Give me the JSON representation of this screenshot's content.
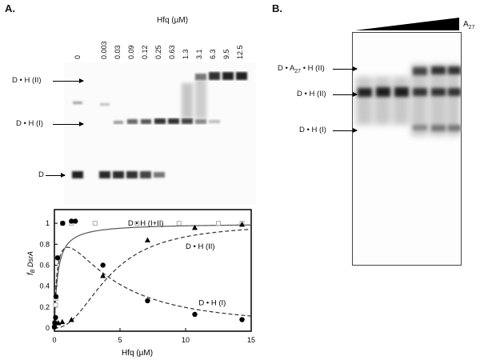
{
  "panel_a": {
    "label": "A.",
    "axis_title": "Hfq (µM)",
    "concentrations": [
      "0",
      "0.003",
      "0.03",
      "0.09",
      "0.12",
      "0.25",
      "0.63",
      "1.3",
      "3.1",
      "6.3",
      "9.5",
      "12.5"
    ],
    "bands": {
      "dh2": "D • H (II)",
      "dh1": "D • H (I)",
      "d": "D"
    }
  },
  "panel_b": {
    "label": "B.",
    "wedge_label": "A",
    "wedge_sub": "27",
    "bands": {
      "dah2_pre": "D • A",
      "dah2_sub": "27",
      "dah2_post": " • H (II)",
      "dh2": "D • H (II)",
      "dh1": "D • H (I)"
    }
  },
  "chart_data": {
    "type": "scatter",
    "xlabel": "Hfq (µM)",
    "ylabel_main": "f",
    "ylabel_sub": "B",
    "ylabel_rest": " DsrA",
    "xlim": [
      0,
      15
    ],
    "ylim": [
      0,
      1.1
    ],
    "xticks": [
      0,
      5,
      10,
      15
    ],
    "yticks": [
      0,
      0.2,
      0.4,
      0.6,
      0.8,
      1
    ],
    "ytick_labels": [
      "0",
      "0.2",
      "0.4",
      "0.6",
      "0.8",
      "1"
    ],
    "series": [
      {
        "name": "D • H (I+II)",
        "marker": "square",
        "line": "solid",
        "fit": "binding",
        "points": [
          [
            0.003,
            0.01
          ],
          [
            0.03,
            0.05
          ],
          [
            0.09,
            0.22
          ],
          [
            0.12,
            0.28
          ],
          [
            0.25,
            0.67
          ],
          [
            0.63,
            1.0
          ],
          [
            1.3,
            1.0
          ],
          [
            3.1,
            1.0
          ],
          [
            6.3,
            1.0
          ],
          [
            9.5,
            1.0
          ],
          [
            12.5,
            1.0
          ],
          [
            14.3,
            1.0
          ]
        ]
      },
      {
        "name": "D • H (I)",
        "marker": "circle",
        "line": "dashed",
        "fit": "peak",
        "points": [
          [
            0.003,
            0.01
          ],
          [
            0.03,
            0.05
          ],
          [
            0.09,
            0.1
          ],
          [
            0.12,
            0.3
          ],
          [
            0.25,
            0.67
          ],
          [
            0.63,
            1.0
          ],
          [
            1.3,
            1.02
          ],
          [
            1.6,
            1.02
          ],
          [
            3.7,
            0.6
          ],
          [
            7.1,
            0.26
          ],
          [
            10.7,
            0.13
          ],
          [
            14.3,
            0.08
          ]
        ]
      },
      {
        "name": "D • H (II)",
        "marker": "triangle",
        "line": "dashed",
        "fit": "rise",
        "points": [
          [
            0.1,
            0.05
          ],
          [
            0.3,
            0.05
          ],
          [
            0.6,
            0.06
          ],
          [
            1.3,
            0.08
          ],
          [
            3.7,
            0.5
          ],
          [
            7.1,
            0.84
          ],
          [
            10.7,
            0.96
          ],
          [
            14.3,
            0.99
          ]
        ]
      }
    ],
    "annotations": [
      {
        "text": "D • H (I+II)",
        "x": 5.6,
        "y": 1.0
      },
      {
        "text": "D • H (II)",
        "x": 10.0,
        "y": 0.78
      },
      {
        "text": "D • H (I)",
        "x": 11.0,
        "y": 0.24
      }
    ]
  }
}
